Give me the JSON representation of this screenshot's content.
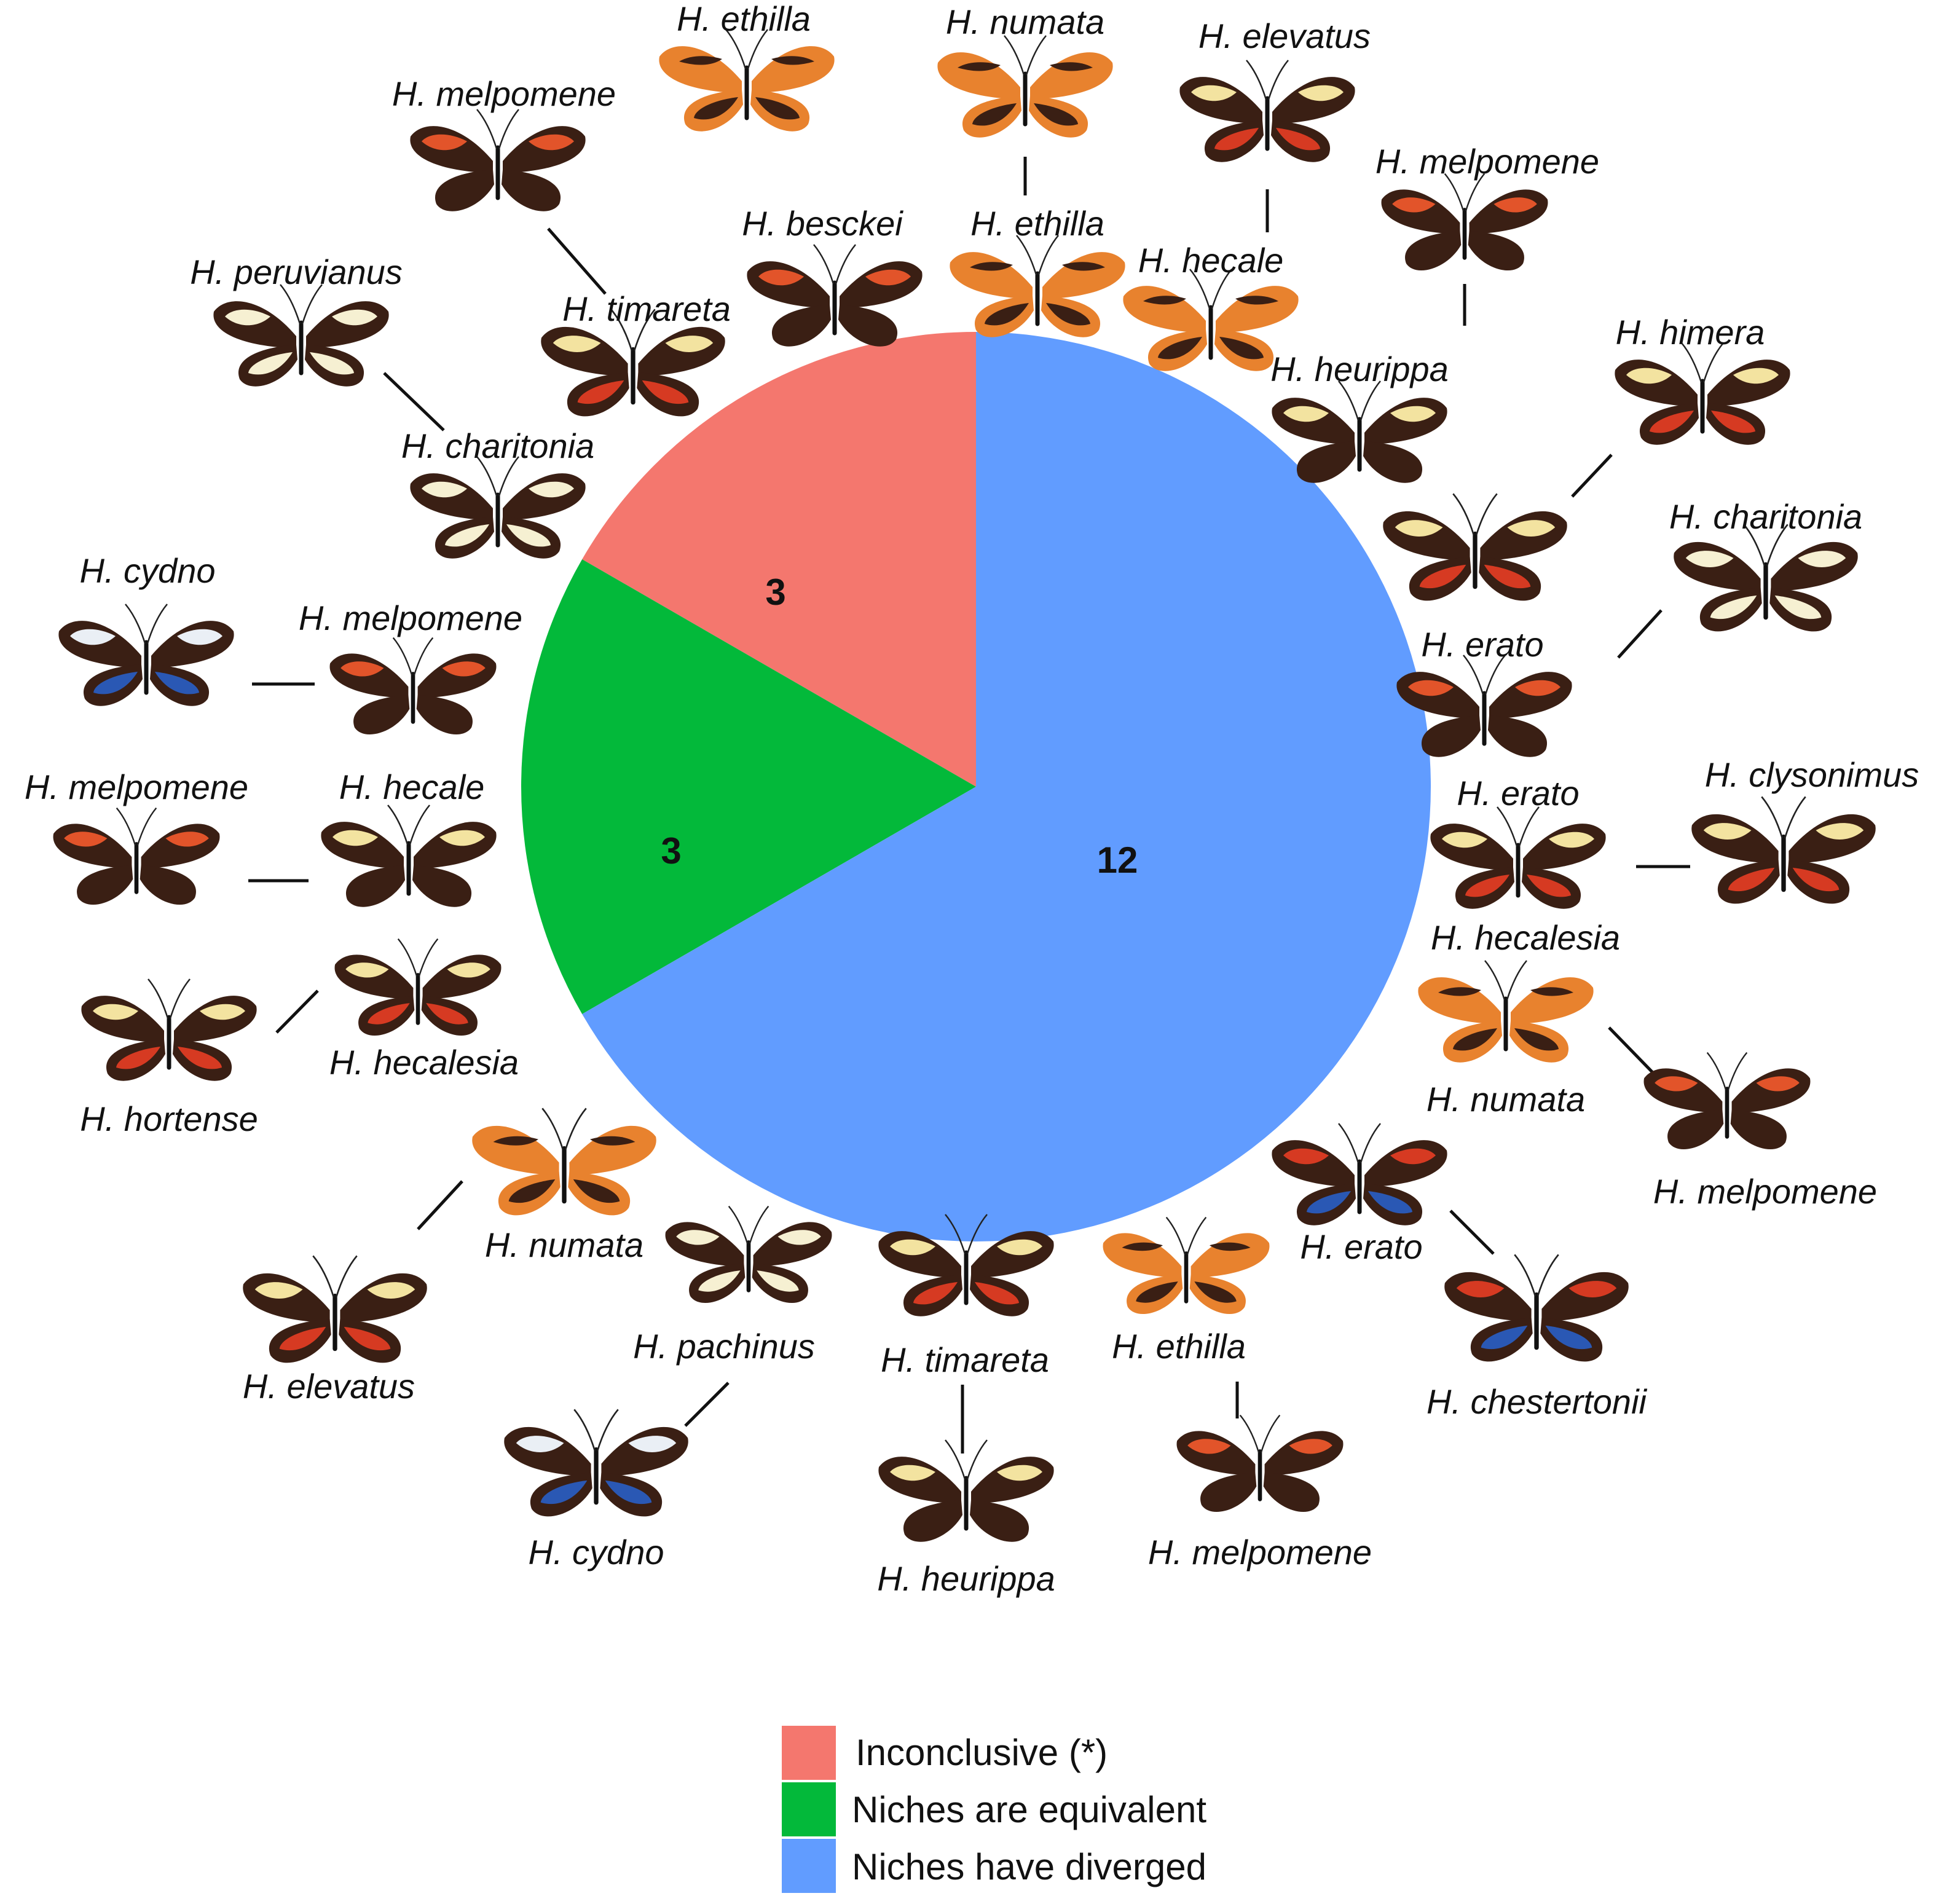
{
  "chart_data": {
    "type": "pie",
    "slices": [
      {
        "key": "inconclusive",
        "label": "Inconclusive (*)",
        "value": 3,
        "color": "#f4776e"
      },
      {
        "key": "equivalent",
        "label": "Niches are equivalent",
        "value": 3,
        "color": "#03b93a"
      },
      {
        "key": "diverged",
        "label": "Niches have diverged",
        "value": 12,
        "color": "#619cff"
      }
    ],
    "legend_position": "bottom-center",
    "start": "top, clockwise, largest slice first"
  },
  "pairs": [
    {
      "a": "H. numata",
      "b": "H. ethilla"
    },
    {
      "a": "H. elevatus",
      "b": "H. hecale"
    },
    {
      "a": "H. melpomene",
      "b": "H. heurippa"
    },
    {
      "a": "H. himera",
      "b": "H. erato"
    },
    {
      "a": "H. charitonia",
      "b": "H. erato"
    },
    {
      "a": "H. erato",
      "b": "H. clysonimus"
    },
    {
      "a": "H. numata",
      "b": "H. melpomene"
    },
    {
      "a": "H. erato",
      "b": "H. chestertonii"
    },
    {
      "a": "H. ethilla",
      "b": "H. melpomene"
    },
    {
      "a": "H. timareta",
      "b": "H. heurippa"
    },
    {
      "a": "H. pachinus",
      "b": "H. cydno"
    },
    {
      "a": "H. numata",
      "b": "H. elevatus"
    },
    {
      "a": "H. hecalesia",
      "b": "H. hortense"
    },
    {
      "a": "H. melpomene",
      "b": "H. hecale"
    },
    {
      "a": "H. cydno",
      "b": "H. melpomene"
    },
    {
      "a": "H. peruvianus",
      "b": "H. charitonia"
    },
    {
      "a": "H. melpomene",
      "b": "H. timareta"
    },
    {
      "a": "H. ethilla",
      "b": "H. besckei"
    }
  ],
  "extra_label": "H. hecalesia",
  "wing_colors": {
    "orange": "#e2542a",
    "tiger": "#e8822e",
    "yellow": "#f3e3a0",
    "cream": "#f6f0d2",
    "blue": "#2a58b4",
    "red": "#d63a22",
    "white": "#eaeff5",
    "dark": "#3a1f14"
  }
}
